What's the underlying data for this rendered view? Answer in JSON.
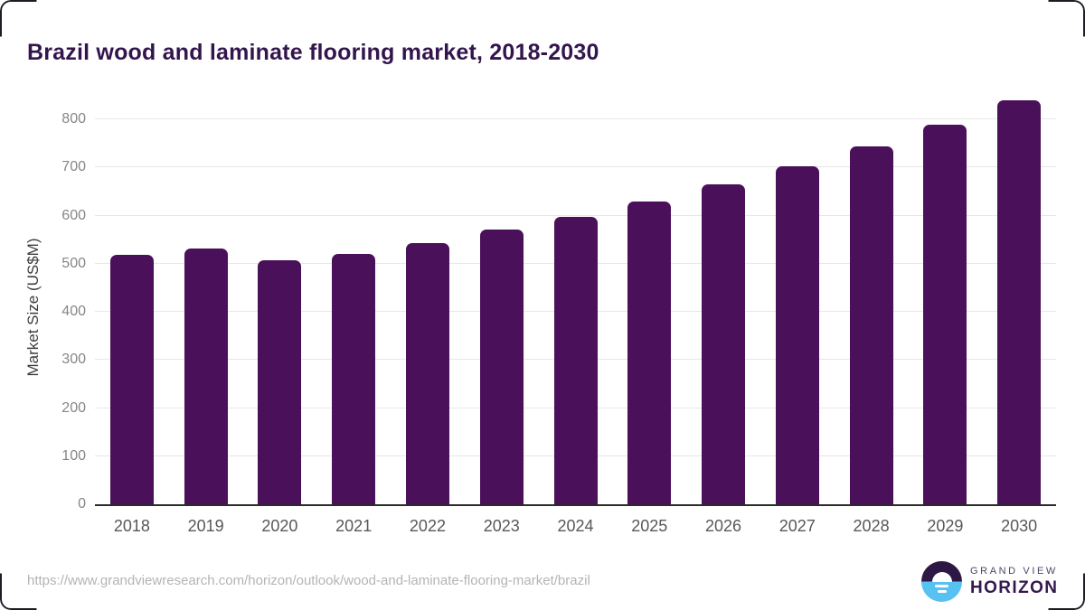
{
  "title": "Brazil wood and laminate flooring market, 2018-2030",
  "chart_data": {
    "type": "bar",
    "title": "Brazil wood and laminate flooring market, 2018-2030",
    "categories": [
      "2018",
      "2019",
      "2020",
      "2021",
      "2022",
      "2023",
      "2024",
      "2025",
      "2026",
      "2027",
      "2028",
      "2029",
      "2030"
    ],
    "values": [
      519,
      532,
      508,
      521,
      543,
      570,
      598,
      630,
      664,
      702,
      743,
      788,
      840
    ],
    "xlabel": "",
    "ylabel": "Market Size (US$M)",
    "ylim": [
      0,
      850
    ],
    "yticks": [
      0,
      100,
      200,
      300,
      400,
      500,
      600,
      700,
      800
    ],
    "grid": true,
    "legend_position": "none",
    "bar_color": "#4a105a"
  },
  "colors": {
    "title": "#33154d",
    "bar": "#4a105a",
    "gridline": "#e7e7e7",
    "axis_line": "#2b2b2b",
    "tick_text": "#868686",
    "x_label_text": "#58585a",
    "url_text": "#b4b4b4",
    "logo_top": "#2d1745",
    "logo_bottom": "#57c1f2"
  },
  "footer": {
    "source_url": "https://www.grandviewresearch.com/horizon/outlook/wood-and-laminate-flooring-market/brazil",
    "logo": {
      "line1": "GRAND VIEW",
      "line2": "HORIZON"
    }
  }
}
